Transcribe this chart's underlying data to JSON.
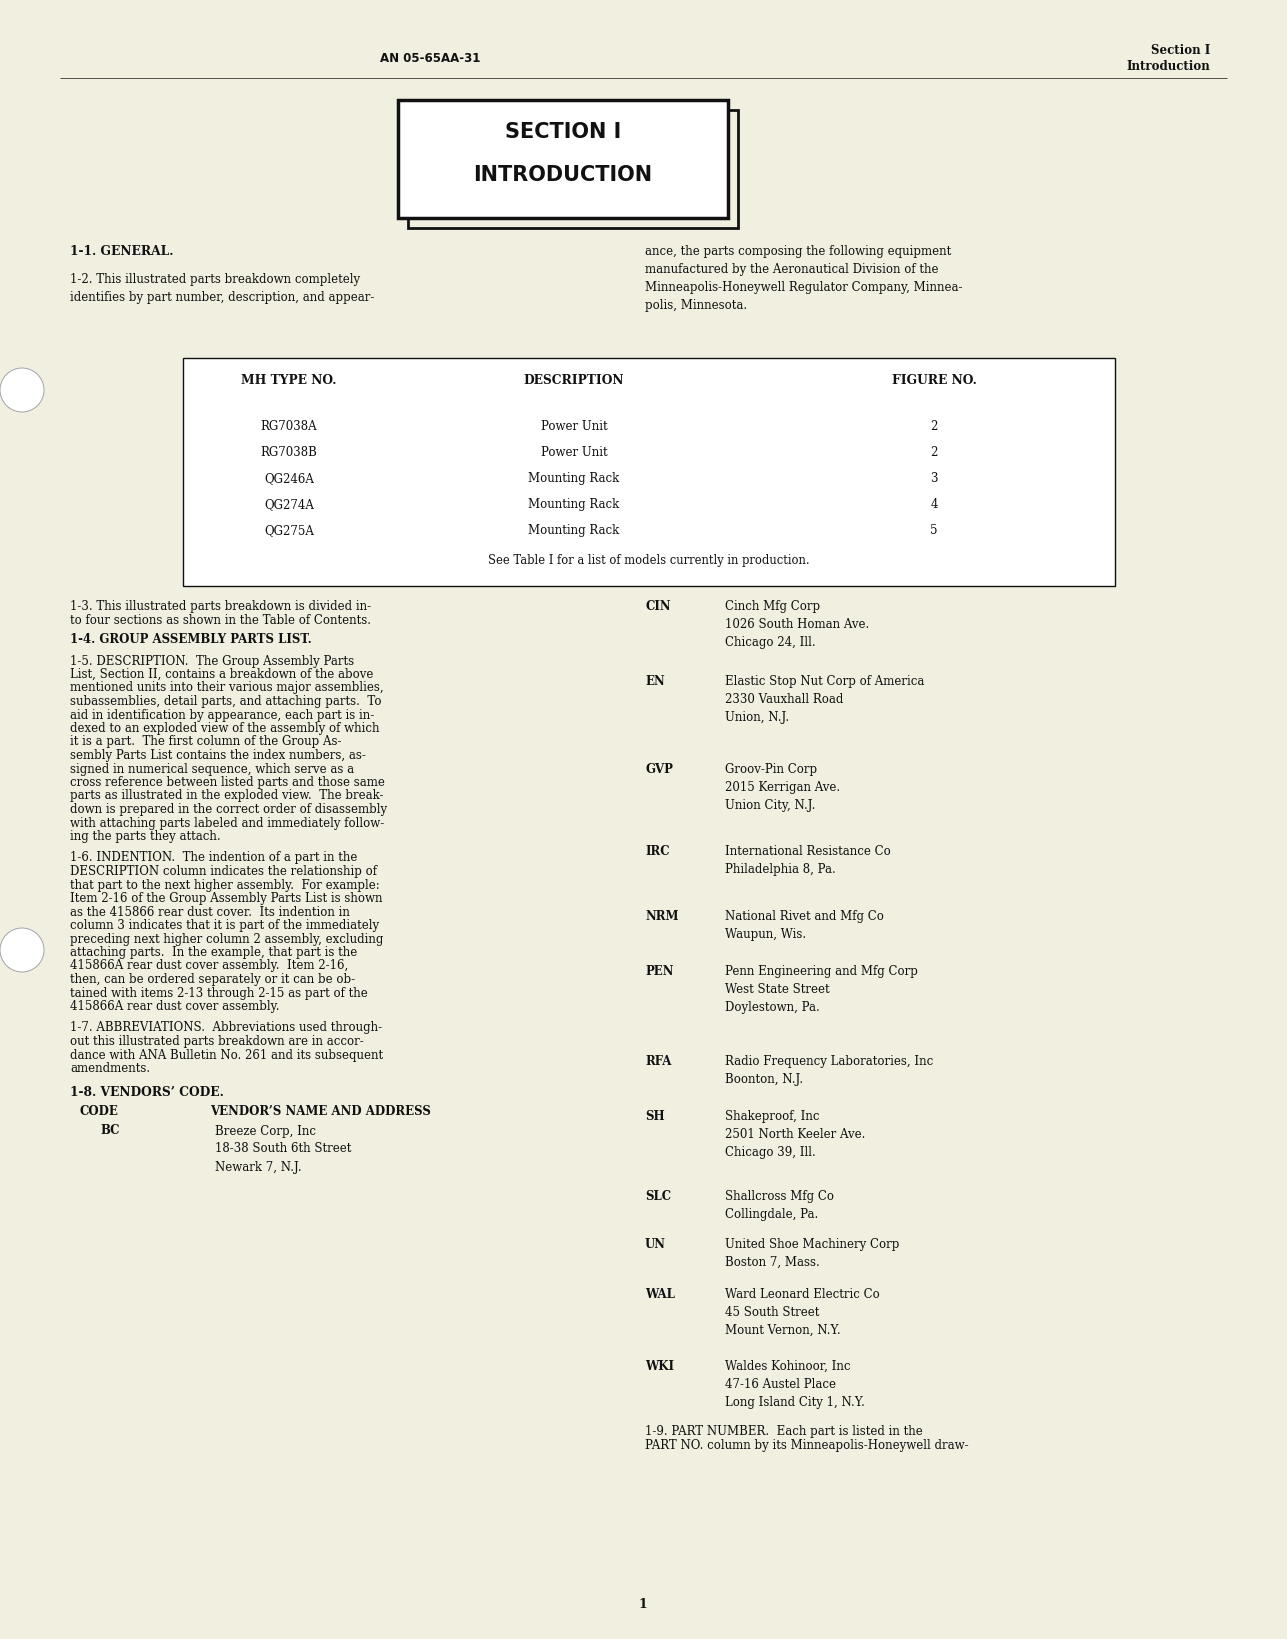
{
  "page_bg": "#F0EFE0",
  "header_left": "AN 05-65AA-31",
  "header_right_line1": "Section I",
  "header_right_line2": "Introduction",
  "section_title_line1": "SECTION I",
  "section_title_line2": "INTRODUCTION",
  "section_11": "1-1. GENERAL.",
  "section_12": "1-2. This illustrated parts breakdown completely\nidentifies by part number, description, and appear-",
  "right_12": "ance, the parts composing the following equipment\nmanufactured by the Aeronautical Division of the\nMinneapolis-Honeywell Regulator Company, Minnea-\npolis, Minnesota.",
  "table_headers": [
    "MH TYPE NO.",
    "DESCRIPTION",
    "FIGURE NO."
  ],
  "table_rows": [
    [
      "RG7038A",
      "Power Unit",
      "2"
    ],
    [
      "RG7038B",
      "Power Unit",
      "2"
    ],
    [
      "QG246A",
      "Mounting Rack",
      "3"
    ],
    [
      "QG274A",
      "Mounting Rack",
      "4"
    ],
    [
      "QG275A",
      "Mounting Rack",
      "5"
    ]
  ],
  "table_note": "See Table I for a list of models currently in production.",
  "section_13": "1-3. This illustrated parts breakdown is divided in-\nto four sections as shown in the Table of Contents.",
  "section_14": "1-4. GROUP ASSEMBLY PARTS LIST.",
  "section_15_lines": [
    "1-5. DESCRIPTION.  The Group Assembly Parts",
    "List, Section II, contains a breakdown of the above",
    "mentioned units into their various major assemblies,",
    "subassemblies, detail parts, and attaching parts.  To",
    "aid in identification by appearance, each part is in-",
    "dexed to an exploded view of the assembly of which",
    "it is a part.  The first column of the Group As-",
    "sembly Parts List contains the index numbers, as-",
    "signed in numerical sequence, which serve as a",
    "cross reference between listed parts and those same",
    "parts as illustrated in the exploded view.  The break-",
    "down is prepared in the correct order of disassembly",
    "with attaching parts labeled and immediately follow-",
    "ing the parts they attach."
  ],
  "section_16_lines": [
    "1-6. INDENTION.  The indention of a part in the",
    "DESCRIPTION column indicates the relationship of",
    "that part to the next higher assembly.  For example:",
    "Item 2-16 of the Group Assembly Parts List is shown",
    "as the 415866 rear dust cover.  Its indention in",
    "column 3 indicates that it is part of the immediately",
    "preceding next higher column 2 assembly, excluding",
    "attaching parts.  In the example, that part is the",
    "415866A rear dust cover assembly.  Item 2-16,",
    "then, can be ordered separately or it can be ob-",
    "tained with items 2-13 through 2-15 as part of the",
    "415866A rear dust cover assembly."
  ],
  "section_17_lines": [
    "1-7. ABBREVIATIONS.  Abbreviations used through-",
    "out this illustrated parts breakdown are in accor-",
    "dance with ANA Bulletin No. 261 and its subsequent",
    "amendments."
  ],
  "section_18": "1-8. VENDORS’ CODE.",
  "vendors_col_label": "CODE",
  "vendors_addr_label": "VENDOR’S NAME AND ADDRESS",
  "vendor_bc_code": "BC",
  "vendor_bc_addr": "Breeze Corp, Inc\n18-38 South 6th Street\nNewark 7, N.J.",
  "right_vendors": [
    {
      "code": "CIN",
      "addr": "Cinch Mfg Corp\n1026 South Homan Ave.\nChicago 24, Ill."
    },
    {
      "code": "EN",
      "addr": "Elastic Stop Nut Corp of America\n2330 Vauxhall Road\nUnion, N.J."
    },
    {
      "code": "GVP",
      "addr": "Groov-Pin Corp\n2015 Kerrigan Ave.\nUnion City, N.J."
    },
    {
      "code": "IRC",
      "addr": "International Resistance Co\nPhiladelphia 8, Pa."
    },
    {
      "code": "NRM",
      "addr": "National Rivet and Mfg Co\nWaupun, Wis."
    },
    {
      "code": "PEN",
      "addr": "Penn Engineering and Mfg Corp\nWest State Street\nDoylestown, Pa."
    },
    {
      "code": "RFA",
      "addr": "Radio Frequency Laboratories, Inc\nBoonton, N.J."
    },
    {
      "code": "SH",
      "addr": "Shakeproof, Inc\n2501 North Keeler Ave.\nChicago 39, Ill."
    },
    {
      "code": "SLC",
      "addr": "Shallcross Mfg Co\nCollingdale, Pa."
    },
    {
      "code": "UN",
      "addr": "United Shoe Machinery Corp\nBoston 7, Mass."
    },
    {
      "code": "WAL",
      "addr": "Ward Leonard Electric Co\n45 South Street\nMount Vernon, N.Y."
    },
    {
      "code": "WKI",
      "addr": "Waldes Kohinoor, Inc\n47-16 Austel Place\nLong Island City 1, N.Y."
    }
  ],
  "section_19_lines": [
    "1-9. PART NUMBER.  Each part is listed in the",
    "PART NO. column by its Minneapolis-Honeywell draw-"
  ],
  "page_number": "1"
}
